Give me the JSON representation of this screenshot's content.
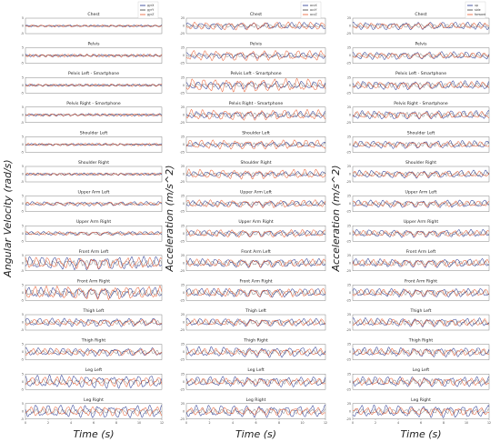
{
  "chart_data": [
    {
      "type": "line",
      "ylabel": "Angular Velocity (rad/s)",
      "xlabel": "Time (s)",
      "x_ticks": [
        "0",
        "2",
        "4",
        "6",
        "8",
        "10",
        "12"
      ],
      "xlim": [
        0,
        12
      ],
      "ylim": [
        -5,
        5
      ],
      "y_ticks": [
        "5",
        "0",
        "-5"
      ],
      "legend": [
        "gyrX",
        "gyrY",
        "gyrZ"
      ],
      "legend_position": "top-right",
      "colors": [
        "#1f2f8c",
        "#3a3a3a",
        "#e8572a"
      ],
      "panels": [
        {
          "title": "Chest",
          "amps": [
            0.4,
            0.3,
            0.5
          ],
          "freqs": [
            1.6,
            2.1,
            1.3
          ]
        },
        {
          "title": "Pelvis",
          "amps": [
            0.6,
            0.4,
            0.7
          ],
          "freqs": [
            1.5,
            2.0,
            1.8
          ]
        },
        {
          "title": "Pelvis Left - Smartphone",
          "amps": [
            0.5,
            0.5,
            0.6
          ],
          "freqs": [
            1.7,
            2.2,
            1.4
          ]
        },
        {
          "title": "Pelvis Right - Smartphone",
          "amps": [
            0.6,
            0.4,
            0.6
          ],
          "freqs": [
            1.6,
            2.0,
            1.5
          ]
        },
        {
          "title": "Shoulder Left",
          "amps": [
            0.5,
            0.4,
            0.6
          ],
          "freqs": [
            1.4,
            2.1,
            1.6
          ]
        },
        {
          "title": "Shoulder Right",
          "amps": [
            0.6,
            0.5,
            0.5
          ],
          "freqs": [
            1.5,
            2.2,
            1.7
          ]
        },
        {
          "title": "Upper Arm Left",
          "amps": [
            1.0,
            0.6,
            0.8
          ],
          "freqs": [
            0.9,
            1.8,
            1.1
          ]
        },
        {
          "title": "Upper Arm Right",
          "amps": [
            0.9,
            0.6,
            0.9
          ],
          "freqs": [
            0.9,
            1.9,
            1.0
          ]
        },
        {
          "title": "Front Arm Left",
          "amps": [
            3.0,
            1.4,
            2.6
          ],
          "freqs": [
            0.9,
            1.7,
            1.0
          ]
        },
        {
          "title": "Front Arm Right",
          "amps": [
            2.4,
            1.3,
            3.0
          ],
          "freqs": [
            0.9,
            1.8,
            1.0
          ]
        },
        {
          "title": "Thigh Left",
          "amps": [
            2.0,
            0.9,
            1.5
          ],
          "freqs": [
            0.9,
            1.8,
            0.95
          ]
        },
        {
          "title": "Thigh Right",
          "amps": [
            1.9,
            0.9,
            1.6
          ],
          "freqs": [
            0.9,
            1.8,
            0.95
          ]
        },
        {
          "title": "Leg Left",
          "amps": [
            3.0,
            1.2,
            2.2
          ],
          "freqs": [
            0.9,
            1.7,
            0.9
          ]
        },
        {
          "title": "Leg Right",
          "amps": [
            3.0,
            1.2,
            2.2
          ],
          "freqs": [
            0.9,
            1.7,
            0.9
          ]
        }
      ]
    },
    {
      "type": "line",
      "ylabel": "Acceleration (m/s^2)",
      "xlabel": "Time (s)",
      "x_ticks": [
        "0",
        "2",
        "4",
        "6",
        "8",
        "10",
        "12"
      ],
      "xlim": [
        0,
        12
      ],
      "ylim": [
        -25,
        25
      ],
      "y_ticks": [
        "25",
        "0",
        "-25"
      ],
      "legend": [
        "accX",
        "accY",
        "accZ"
      ],
      "legend_position": "top-right",
      "colors": [
        "#1f2f8c",
        "#3a3a3a",
        "#e8572a"
      ],
      "panels": [
        {
          "title": "Chest",
          "amps": [
            8,
            4,
            9
          ],
          "freqs": [
            0.9,
            1.8,
            1.0
          ]
        },
        {
          "title": "Pelvis",
          "amps": [
            7,
            4,
            12
          ],
          "freqs": [
            0.9,
            1.8,
            1.0
          ]
        },
        {
          "title": "Pelvis Left - Smartphone",
          "amps": [
            9,
            5,
            15
          ],
          "freqs": [
            0.9,
            1.8,
            1.0
          ]
        },
        {
          "title": "Pelvis Right - Smartphone",
          "amps": [
            8,
            5,
            12
          ],
          "freqs": [
            0.9,
            1.8,
            1.0
          ]
        },
        {
          "title": "Shoulder Left",
          "amps": [
            6,
            4,
            11
          ],
          "freqs": [
            0.9,
            1.8,
            1.0
          ]
        },
        {
          "title": "Shoulder Right",
          "amps": [
            6,
            4,
            11
          ],
          "freqs": [
            0.9,
            1.8,
            1.0
          ]
        },
        {
          "title": "Upper Arm Left",
          "amps": [
            7,
            5,
            9
          ],
          "freqs": [
            0.9,
            1.8,
            1.0
          ]
        },
        {
          "title": "Upper Arm Right",
          "amps": [
            7,
            5,
            9
          ],
          "freqs": [
            0.9,
            1.8,
            1.0
          ]
        },
        {
          "title": "Front Arm Left",
          "amps": [
            10,
            6,
            9
          ],
          "freqs": [
            0.9,
            1.8,
            1.0
          ]
        },
        {
          "title": "Front Arm Right",
          "amps": [
            10,
            6,
            10
          ],
          "freqs": [
            0.9,
            1.8,
            1.0
          ]
        },
        {
          "title": "Thigh Left",
          "amps": [
            9,
            5,
            8
          ],
          "freqs": [
            0.9,
            1.8,
            1.0
          ]
        },
        {
          "title": "Thigh Right",
          "amps": [
            12,
            5,
            8
          ],
          "freqs": [
            0.9,
            1.8,
            1.0
          ]
        },
        {
          "title": "Leg Left",
          "amps": [
            12,
            6,
            8
          ],
          "freqs": [
            0.9,
            1.8,
            1.0
          ]
        },
        {
          "title": "Leg Right",
          "amps": [
            14,
            6,
            9
          ],
          "freqs": [
            0.9,
            1.8,
            1.0
          ]
        }
      ]
    },
    {
      "type": "line",
      "ylabel": "Acceleration (m/s^2)",
      "xlabel": "Time (s)",
      "x_ticks": [
        "0",
        "2",
        "4",
        "6",
        "8",
        "10",
        "12"
      ],
      "xlim": [
        0,
        12
      ],
      "ylim": [
        -25,
        25
      ],
      "y_ticks": [
        "25",
        "0",
        "-25"
      ],
      "legend": [
        "up",
        "side",
        "forward"
      ],
      "legend_position": "top-right",
      "colors": [
        "#1f2f8c",
        "#3a3a3a",
        "#e8572a"
      ],
      "panels": [
        {
          "title": "Chest",
          "amps": [
            9,
            5,
            7
          ],
          "freqs": [
            0.9,
            1.8,
            1.0
          ]
        },
        {
          "title": "Pelvis",
          "amps": [
            9,
            5,
            7
          ],
          "freqs": [
            0.9,
            1.8,
            1.0
          ]
        },
        {
          "title": "Pelvis Left - Smartphone",
          "amps": [
            10,
            6,
            8
          ],
          "freqs": [
            0.9,
            1.8,
            1.0
          ]
        },
        {
          "title": "Pelvis Right - Smartphone",
          "amps": [
            10,
            6,
            8
          ],
          "freqs": [
            0.9,
            1.8,
            1.0
          ]
        },
        {
          "title": "Shoulder Left",
          "amps": [
            9,
            5,
            7
          ],
          "freqs": [
            0.9,
            1.8,
            1.0
          ]
        },
        {
          "title": "Shoulder Right",
          "amps": [
            9,
            5,
            7
          ],
          "freqs": [
            0.9,
            1.8,
            1.0
          ]
        },
        {
          "title": "Upper Arm Left",
          "amps": [
            9,
            5,
            7
          ],
          "freqs": [
            0.9,
            1.8,
            1.0
          ]
        },
        {
          "title": "Upper Arm Right",
          "amps": [
            9,
            5,
            7
          ],
          "freqs": [
            0.9,
            1.8,
            1.0
          ]
        },
        {
          "title": "Front Arm Left",
          "amps": [
            10,
            6,
            8
          ],
          "freqs": [
            0.9,
            1.8,
            1.0
          ]
        },
        {
          "title": "Front Arm Right",
          "amps": [
            10,
            6,
            8
          ],
          "freqs": [
            0.9,
            1.8,
            1.0
          ]
        },
        {
          "title": "Thigh Left",
          "amps": [
            10,
            6,
            8
          ],
          "freqs": [
            0.9,
            1.8,
            1.0
          ]
        },
        {
          "title": "Thigh Right",
          "amps": [
            11,
            6,
            8
          ],
          "freqs": [
            0.9,
            1.8,
            1.0
          ]
        },
        {
          "title": "Leg Left",
          "amps": [
            12,
            6,
            9
          ],
          "freqs": [
            0.9,
            1.8,
            1.0
          ]
        },
        {
          "title": "Leg Right",
          "amps": [
            14,
            6,
            9
          ],
          "freqs": [
            0.9,
            1.8,
            1.0
          ]
        }
      ]
    }
  ]
}
